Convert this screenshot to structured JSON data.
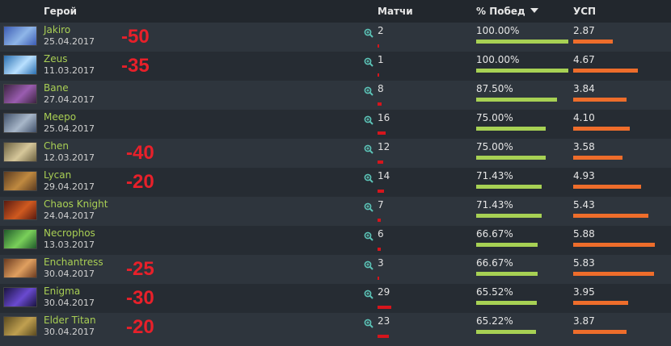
{
  "header": {
    "hero": "Герой",
    "matches": "Матчи",
    "winrate": "% Побед",
    "ksp": "УСП"
  },
  "colors": {
    "hero_name": "#a9cf54",
    "win_bar": "#a7d154",
    "ksp_bar": "#ee6d2b",
    "match_bar": "#d6151c",
    "note": "#e8202a"
  },
  "rows": [
    {
      "name": "Jakiro",
      "date": "25.04.2017",
      "note": "-50",
      "matches": "2",
      "matches_n": 2,
      "winrate": "100.00%",
      "win_frac": 1.0,
      "ksp": "2.87",
      "ksp_n": 2.87,
      "avatar": "jakiro-portrait"
    },
    {
      "name": "Zeus",
      "date": "11.03.2017",
      "note": "-35",
      "matches": "1",
      "matches_n": 1,
      "winrate": "100.00%",
      "win_frac": 1.0,
      "ksp": "4.67",
      "ksp_n": 4.67,
      "avatar": "zeus-portrait"
    },
    {
      "name": "Bane",
      "date": "27.04.2017",
      "note": "",
      "matches": "8",
      "matches_n": 8,
      "winrate": "87.50%",
      "win_frac": 0.875,
      "ksp": "3.84",
      "ksp_n": 3.84,
      "avatar": "bane-portrait"
    },
    {
      "name": "Meepo",
      "date": "25.04.2017",
      "note": "",
      "matches": "16",
      "matches_n": 16,
      "winrate": "75.00%",
      "win_frac": 0.75,
      "ksp": "4.10",
      "ksp_n": 4.1,
      "avatar": "meepo-portrait"
    },
    {
      "name": "Chen",
      "date": "12.03.2017",
      "note": "-40",
      "matches": "12",
      "matches_n": 12,
      "winrate": "75.00%",
      "win_frac": 0.75,
      "ksp": "3.58",
      "ksp_n": 3.58,
      "avatar": "chen-portrait"
    },
    {
      "name": "Lycan",
      "date": "29.04.2017",
      "note": "-20",
      "matches": "14",
      "matches_n": 14,
      "winrate": "71.43%",
      "win_frac": 0.7143,
      "ksp": "4.93",
      "ksp_n": 4.93,
      "avatar": "lycan-portrait"
    },
    {
      "name": "Chaos Knight",
      "date": "24.04.2017",
      "note": "",
      "matches": "7",
      "matches_n": 7,
      "winrate": "71.43%",
      "win_frac": 0.7143,
      "ksp": "5.43",
      "ksp_n": 5.43,
      "avatar": "chaos-knight-portrait"
    },
    {
      "name": "Necrophos",
      "date": "13.03.2017",
      "note": "",
      "matches": "6",
      "matches_n": 6,
      "winrate": "66.67%",
      "win_frac": 0.6667,
      "ksp": "5.88",
      "ksp_n": 5.88,
      "avatar": "necrophos-portrait"
    },
    {
      "name": "Enchantress",
      "date": "30.04.2017",
      "note": "-25",
      "matches": "3",
      "matches_n": 3,
      "winrate": "66.67%",
      "win_frac": 0.6667,
      "ksp": "5.83",
      "ksp_n": 5.83,
      "avatar": "enchantress-portrait"
    },
    {
      "name": "Enigma",
      "date": "30.04.2017",
      "note": "-30",
      "matches": "29",
      "matches_n": 29,
      "winrate": "65.52%",
      "win_frac": 0.6552,
      "ksp": "3.95",
      "ksp_n": 3.95,
      "avatar": "enigma-portrait"
    },
    {
      "name": "Elder Titan",
      "date": "30.04.2017",
      "note": "-20",
      "matches": "23",
      "matches_n": 23,
      "winrate": "65.22%",
      "win_frac": 0.6522,
      "ksp": "3.87",
      "ksp_n": 3.87,
      "avatar": "elder-titan-portrait"
    }
  ]
}
